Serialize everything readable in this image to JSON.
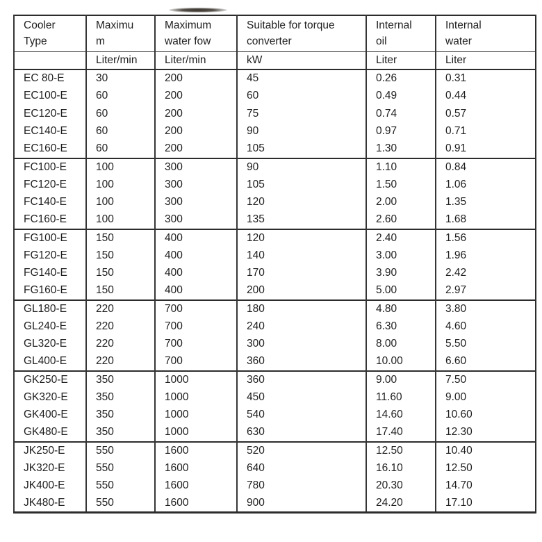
{
  "document": {
    "kind": "scanned-specification-table",
    "background": "#ffffff"
  },
  "colors": {
    "text": "#1e1e1e",
    "table_lines": "#353535",
    "table_lines_heavy": "#2c2c2c",
    "smudge": "#2a241c"
  },
  "artifact": {
    "name": "scan-smudge"
  },
  "table": {
    "headers": [
      {
        "label": "Cooler\nType",
        "unit": ""
      },
      {
        "label": "Maximu\nm",
        "unit": "Liter/min"
      },
      {
        "label": "Maximum\nwater fow",
        "unit": "Liter/min"
      },
      {
        "label": "Suitable for torque\nconverter",
        "unit": "kW"
      },
      {
        "label": "Internal\noil",
        "unit": "Liter"
      },
      {
        "label": "Internal\nwater",
        "unit": "Liter"
      }
    ],
    "groups": [
      {
        "name": "EC",
        "rows": [
          [
            "EC 80-E",
            "30",
            "200",
            "45",
            "0.26",
            "0.31"
          ],
          [
            "EC100-E",
            "60",
            "200",
            "60",
            "0.49",
            "0.44"
          ],
          [
            "EC120-E",
            "60",
            "200",
            "75",
            "0.74",
            "0.57"
          ],
          [
            "EC140-E",
            "60",
            "200",
            "90",
            "0.97",
            "0.71"
          ],
          [
            "EC160-E",
            "60",
            "200",
            "105",
            "1.30",
            "0.91"
          ]
        ]
      },
      {
        "name": "FC",
        "rows": [
          [
            "FC100-E",
            "100",
            "300",
            "90",
            "1.10",
            "0.84"
          ],
          [
            "FC120-E",
            "100",
            "300",
            "105",
            "1.50",
            "1.06"
          ],
          [
            "FC140-E",
            "100",
            "300",
            "120",
            "2.00",
            "1.35"
          ],
          [
            "FC160-E",
            "100",
            "300",
            "135",
            "2.60",
            "1.68"
          ]
        ]
      },
      {
        "name": "FG",
        "rows": [
          [
            "FG100-E",
            "150",
            "400",
            "120",
            "2.40",
            "1.56"
          ],
          [
            "FG120-E",
            "150",
            "400",
            "140",
            "3.00",
            "1.96"
          ],
          [
            "FG140-E",
            "150",
            "400",
            "170",
            "3.90",
            "2.42"
          ],
          [
            "FG160-E",
            "150",
            "400",
            "200",
            "5.00",
            "2.97"
          ]
        ]
      },
      {
        "name": "GL",
        "rows": [
          [
            "GL180-E",
            "220",
            "700",
            "180",
            "4.80",
            "3.80"
          ],
          [
            "GL240-E",
            "220",
            "700",
            "240",
            "6.30",
            "4.60"
          ],
          [
            "GL320-E",
            "220",
            "700",
            "300",
            "8.00",
            "5.50"
          ],
          [
            "GL400-E",
            "220",
            "700",
            "360",
            "10.00",
            "6.60"
          ]
        ]
      },
      {
        "name": "GK",
        "rows": [
          [
            "GK250-E",
            "350",
            "1000",
            "360",
            "9.00",
            "7.50"
          ],
          [
            "GK320-E",
            "350",
            "1000",
            "450",
            "11.60",
            "9.00"
          ],
          [
            "GK400-E",
            "350",
            "1000",
            "540",
            "14.60",
            "10.60"
          ],
          [
            "GK480-E",
            "350",
            "1000",
            "630",
            "17.40",
            "12.30"
          ]
        ]
      },
      {
        "name": "JK",
        "rows": [
          [
            "JK250-E",
            "550",
            "1600",
            "520",
            "12.50",
            "10.40"
          ],
          [
            "JK320-E",
            "550",
            "1600",
            "640",
            "16.10",
            "12.50"
          ],
          [
            "JK400-E",
            "550",
            "1600",
            "780",
            "20.30",
            "14.70"
          ],
          [
            "JK480-E",
            "550",
            "1600",
            "900",
            "24.20",
            "17.10"
          ]
        ]
      }
    ]
  }
}
